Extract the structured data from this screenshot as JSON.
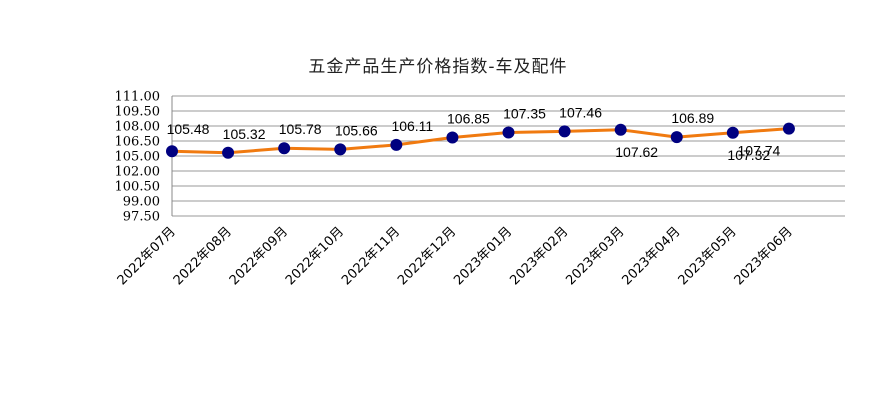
{
  "chart_data": {
    "type": "line",
    "title": "五金产品生产价格指数-车及配件",
    "categories": [
      "2022年07月",
      "2022年08月",
      "2022年09月",
      "2022年10月",
      "2022年11月",
      "2022年12月",
      "2023年01月",
      "2023年02月",
      "2023年03月",
      "2023年04月",
      "2023年05月",
      "2023年06月"
    ],
    "series": [
      {
        "values": [
          105.48,
          105.32,
          105.78,
          105.66,
          106.11,
          106.85,
          107.35,
          107.46,
          107.62,
          106.89,
          107.32,
          107.74
        ],
        "value_labels": [
          "105.48",
          "105.32",
          "105.78",
          "105.66",
          "106.11",
          "106.85",
          "107.35",
          "107.46",
          "107.62",
          "106.89",
          "107.32",
          "107.74"
        ],
        "line_color": "#F07A10",
        "marker_color": "#000080"
      }
    ],
    "y_ticks": [
      "111.00",
      "109.50",
      "108.00",
      "106.50",
      "105.00",
      "102.00",
      "100.50",
      "99.00",
      "97.50"
    ],
    "grid": true,
    "legend": "none",
    "colors": {
      "grid": "#999999",
      "axis": "#888888"
    }
  }
}
